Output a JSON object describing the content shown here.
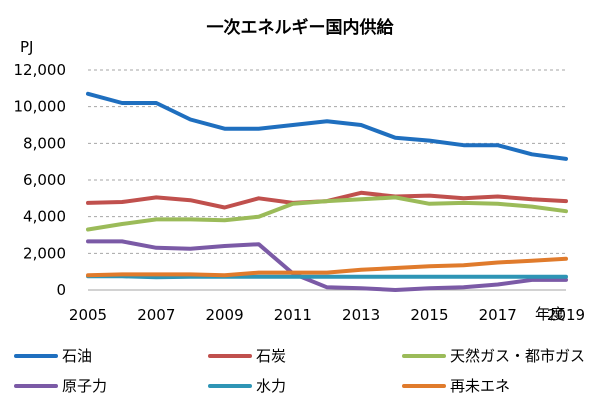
{
  "chart_data": {
    "type": "line",
    "title": "一次エネルギー国内供給",
    "ylabel": "PJ",
    "xlabel": "年度",
    "ylim": [
      0,
      12000
    ],
    "yticks": [
      "0",
      "2,000",
      "4,000",
      "6,000",
      "8,000",
      "10,000",
      "12,000"
    ],
    "ytick_values": [
      0,
      2000,
      4000,
      6000,
      8000,
      10000,
      12000
    ],
    "xticks": [
      "2005",
      "2007",
      "2009",
      "2011",
      "2013",
      "2015",
      "2017",
      "2019"
    ],
    "xtick_values": [
      2005,
      2007,
      2009,
      2011,
      2013,
      2015,
      2017,
      2019
    ],
    "x": [
      2005,
      2006,
      2007,
      2008,
      2009,
      2010,
      2011,
      2012,
      2013,
      2014,
      2015,
      2016,
      2017,
      2018,
      2019
    ],
    "grid": "horizontal-dashed",
    "legend_position": "bottom",
    "series": [
      {
        "name": "石油",
        "color": "#1f6fbf",
        "values": [
          10700,
          10200,
          10200,
          9300,
          8800,
          8800,
          9000,
          9200,
          9000,
          8300,
          8150,
          7900,
          7900,
          7400,
          7150
        ]
      },
      {
        "name": "石炭",
        "color": "#c0504d",
        "values": [
          4750,
          4800,
          5050,
          4900,
          4500,
          5000,
          4750,
          4850,
          5300,
          5100,
          5150,
          5000,
          5100,
          4950,
          4850
        ]
      },
      {
        "name": "天然ガス・都市ガス",
        "color": "#9bbb59",
        "values": [
          3300,
          3600,
          3850,
          3850,
          3800,
          4000,
          4700,
          4850,
          4950,
          5050,
          4700,
          4750,
          4700,
          4550,
          4300
        ]
      },
      {
        "name": "原子力",
        "color": "#7b5aa6",
        "values": [
          2650,
          2650,
          2300,
          2250,
          2400,
          2500,
          900,
          150,
          100,
          0,
          100,
          150,
          300,
          550,
          550
        ]
      },
      {
        "name": "水力",
        "color": "#2e95b5",
        "values": [
          750,
          750,
          700,
          720,
          720,
          720,
          720,
          720,
          720,
          720,
          720,
          720,
          720,
          720,
          720
        ]
      },
      {
        "name": "再未エネ",
        "color": "#e07b2c",
        "values": [
          800,
          850,
          850,
          850,
          800,
          950,
          950,
          950,
          1100,
          1200,
          1300,
          1350,
          1500,
          1600,
          1700
        ]
      }
    ]
  }
}
